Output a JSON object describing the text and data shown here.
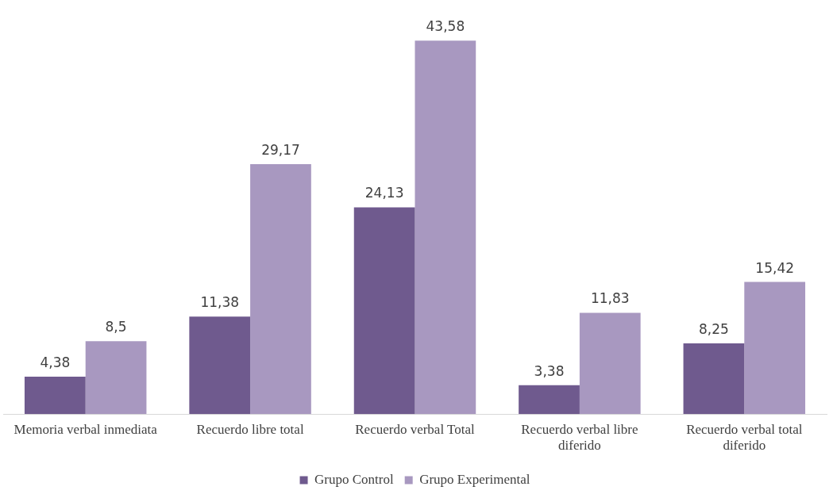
{
  "chart_data": {
    "type": "bar",
    "categories": [
      "Memoria verbal inmediata",
      "Recuerdo libre total",
      "Recuerdo verbal Total",
      "Recuerdo verbal libre diferido",
      "Recuerdo verbal total diferido"
    ],
    "series": [
      {
        "name": "Grupo Control",
        "color": "#6f5a8e",
        "values": [
          4.38,
          11.38,
          24.13,
          3.38,
          8.25
        ],
        "value_labels": [
          "4,38",
          "11,38",
          "24,13",
          "3,38",
          "8,25"
        ]
      },
      {
        "name": "Grupo Experimental",
        "color": "#a898c0",
        "values": [
          8.5,
          29.17,
          43.58,
          11.83,
          15.42
        ],
        "value_labels": [
          "8,5",
          "29,17",
          "43,58",
          "11,83",
          "15,42"
        ]
      }
    ],
    "legend": "bottom",
    "grid": false
  }
}
